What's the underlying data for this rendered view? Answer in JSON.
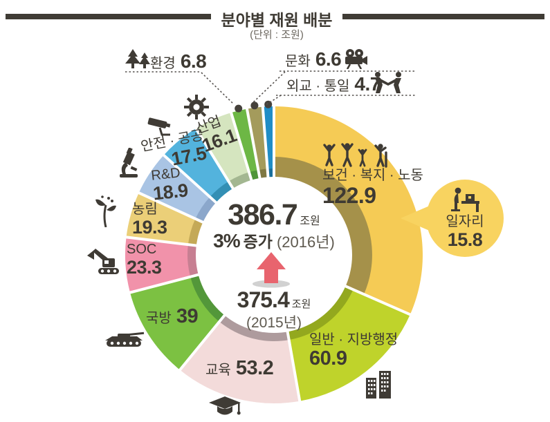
{
  "title": {
    "text": "분야별 재원 배분",
    "unit": "(단위 : 조원)"
  },
  "center": {
    "current_value": "386.7",
    "current_unit": "조원",
    "increase_pct": "3%",
    "increase_word": "증가",
    "current_year": "(2016년)",
    "previous_value": "375.4",
    "previous_unit": "조원",
    "previous_year": "(2015년)"
  },
  "callout": {
    "label": "일자리",
    "value": "15.8",
    "icon": "person-at-desk-icon",
    "color": "#F8D360"
  },
  "colors": {
    "text": "#3E3A33",
    "muted_text": "#5E594F",
    "title_bar": "#403C35",
    "arrow_red": "#E8646E",
    "dot": "#45413B"
  },
  "chart_data": {
    "type": "donut",
    "title": "분야별 재원 배분",
    "unit": "조원",
    "center_total_2016": 386.7,
    "center_total_2015": 375.4,
    "growth_percent": 3,
    "start_angle_deg": 0,
    "direction": "clockwise",
    "segments": [
      {
        "id": "welfare",
        "label": "보건 · 복지 · 노동",
        "value": 122.9,
        "color": "#F5CB55",
        "rim": "#A5914A",
        "icon": "family-icon"
      },
      {
        "id": "admin",
        "label": "일반 · 지방행정",
        "value": 60.9,
        "color": "#BFD32B",
        "rim": "#93A81E",
        "icon": "buildings-icon"
      },
      {
        "id": "education",
        "label": "교육",
        "value": 53.2,
        "color": "#F3DBDA",
        "rim": "#AE9B9D",
        "icon": "graduation-cap-icon"
      },
      {
        "id": "defense",
        "label": "국방",
        "value": 39,
        "color": "#7CC142",
        "rim": "#53973A",
        "icon": "tank-icon"
      },
      {
        "id": "soc",
        "label": "SOC",
        "value": 23.3,
        "color": "#F192AA",
        "rim": "#C77F92",
        "icon": "excavator-icon"
      },
      {
        "id": "agriculture",
        "label": "농림",
        "value": 19.3,
        "color": "#EBCF78",
        "rim": "#C4A957",
        "icon": "sprout-icon"
      },
      {
        "id": "rnd",
        "label": "R&D",
        "value": 18.9,
        "color": "#A9C4E4",
        "rim": "#8BA7CB",
        "icon": "microscope-icon"
      },
      {
        "id": "safety",
        "label": "안전 · 공공",
        "value": 17.5,
        "color": "#53B3DD",
        "rim": "#338FB4",
        "icon": "cctv-icon"
      },
      {
        "id": "industry",
        "label": "산업",
        "value": 16.1,
        "color": "#D5E5BF",
        "rim": "#A3B791",
        "icon": "gear-icon"
      },
      {
        "id": "environment",
        "label": "환경",
        "value": 6.8,
        "color": "#6DB745",
        "rim": "#4F9539",
        "icon": "trees-icon",
        "callout_dot": true
      },
      {
        "id": "culture",
        "label": "문화",
        "value": 6.6,
        "color": "#A49B5C",
        "rim": "#7F7843",
        "icon": "movie-camera-icon",
        "callout_dot": true
      },
      {
        "id": "diplomacy",
        "label": "외교 · 통일",
        "value": 4.7,
        "color": "#1F8DC6",
        "rim": "#196F9C",
        "icon": "handshake-icon",
        "callout_dot": true
      }
    ],
    "sub_item": {
      "parent": "welfare",
      "label": "일자리",
      "value": 15.8
    }
  }
}
